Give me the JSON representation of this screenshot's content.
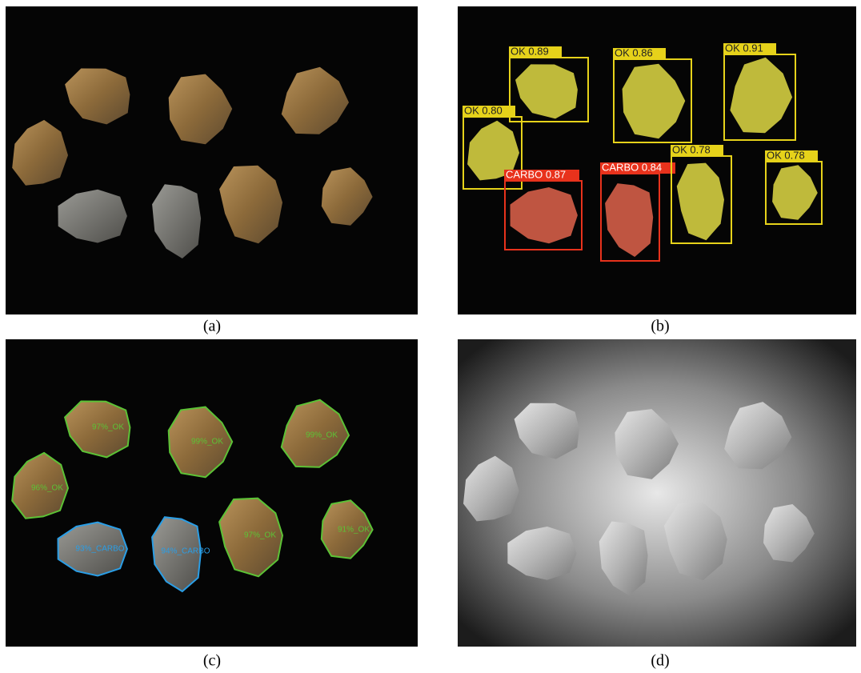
{
  "panels": [
    {
      "caption": "(a)"
    },
    {
      "caption": "(b)",
      "detections": [
        {
          "label": "OK 0.89"
        },
        {
          "label": "OK 0.86"
        },
        {
          "label": "OK 0.91"
        },
        {
          "label": "OK 0.80"
        },
        {
          "label": "CARBO 0.87"
        },
        {
          "label": "CARBO 0.84"
        },
        {
          "label": "OK 0.78"
        },
        {
          "label": "OK 0.78"
        }
      ]
    },
    {
      "caption": "(c)",
      "segments": [
        {
          "label": "97%_OK"
        },
        {
          "label": "99%_OK"
        },
        {
          "label": "99%_OK"
        },
        {
          "label": "96%_OK"
        },
        {
          "label": "93%_CARBO"
        },
        {
          "label": "94%_CARBO"
        },
        {
          "label": "97%_OK"
        },
        {
          "label": "91%_OK"
        }
      ]
    },
    {
      "caption": "(d)"
    }
  ]
}
